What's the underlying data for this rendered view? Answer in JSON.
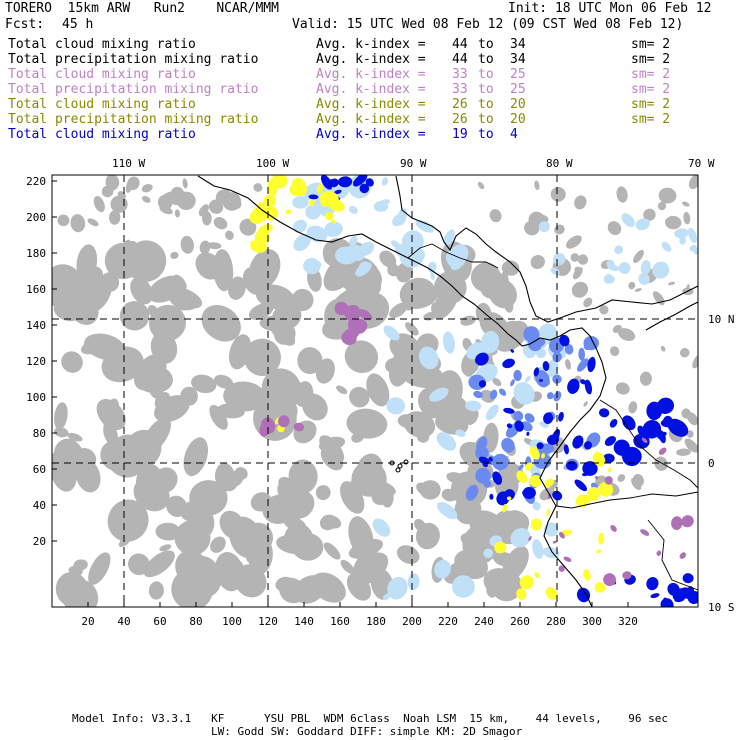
{
  "header": {
    "title_left": "TORERO  15km ARW   Run2    NCAR/MMM",
    "init": "Init: 18 UTC Mon 06 Feb 12",
    "fcst_label": "Fcst:",
    "fcst_value": "45 h",
    "valid": "Valid: 15 UTC Wed 08 Feb 12 (09 CST Wed 08 Feb 12)"
  },
  "legend": [
    {
      "field": "Total cloud mixing ratio",
      "avg": "Avg. k-index =",
      "k_from": "44",
      "to": "to",
      "k_to": "34",
      "sm": "sm= 2",
      "color": "#000000"
    },
    {
      "field": "Total precipitation mixing ratio",
      "avg": "Avg. k-index =",
      "k_from": "44",
      "to": "to",
      "k_to": "34",
      "sm": "sm= 2",
      "color": "#000000"
    },
    {
      "field": "Total cloud mixing ratio",
      "avg": "Avg. k-index =",
      "k_from": "33",
      "to": "to",
      "k_to": "25",
      "sm": "sm= 2",
      "color": "#c080c8"
    },
    {
      "field": "Total precipitation mixing ratio",
      "avg": "Avg. k-index =",
      "k_from": "33",
      "to": "to",
      "k_to": "25",
      "sm": "sm= 2",
      "color": "#c080c8"
    },
    {
      "field": "Total cloud mixing ratio",
      "avg": "Avg. k-index =",
      "k_from": "26",
      "to": "to",
      "k_to": "20",
      "sm": "sm= 2",
      "color": "#8a8a00"
    },
    {
      "field": "Total precipitation mixing ratio",
      "avg": "Avg. k-index =",
      "k_from": "26",
      "to": "to",
      "k_to": "20",
      "sm": "sm= 2",
      "color": "#8a8a00"
    },
    {
      "field": "Total cloud mixing ratio",
      "avg": "Avg. k-index =",
      "k_from": "19",
      "to": "to",
      "k_to": "4",
      "sm": "",
      "color": "#0000d0"
    }
  ],
  "map": {
    "lon_labels": [
      "110 W",
      "100 W",
      "90 W",
      "80 W",
      "70 W"
    ],
    "lat_labels": [
      "10 N",
      "0",
      "10 S"
    ],
    "x_ticks": [
      "20",
      "40",
      "60",
      "80",
      "100",
      "120",
      "140",
      "160",
      "180",
      "200",
      "220",
      "240",
      "260",
      "280",
      "300",
      "320"
    ],
    "y_ticks": [
      "220",
      "200",
      "180",
      "160",
      "140",
      "120",
      "100",
      "80",
      "60",
      "40",
      "20"
    ],
    "colors": {
      "gray": "#b4b4b4",
      "light_blue": "#c0e0f8",
      "mid_blue": "#6a8af0",
      "blue": "#0010e0",
      "yellow": "#ffff30",
      "purple": "#b070b8"
    }
  },
  "footer": {
    "line1": "Model Info: V3.3.1   KF      YSU PBL  WDM 6class  Noah LSM  15 km,    44 levels,    96 sec",
    "line2": "LW: Godd SW: Goddard DIFF: simple KM: 2D Smagor"
  }
}
